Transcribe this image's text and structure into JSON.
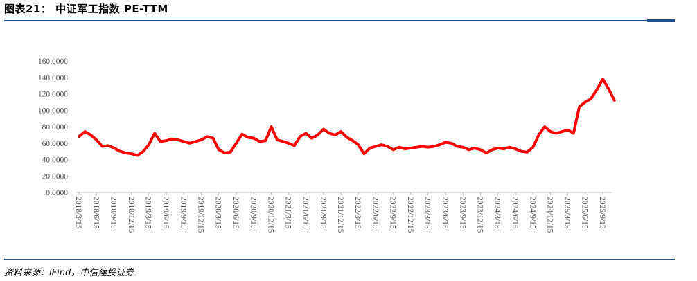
{
  "header": {
    "title": "图表21：   中证军工指数 PE-TTM"
  },
  "footer": {
    "source": "资料来源：iFind，中信建投证券"
  },
  "colors": {
    "line": "#ff0000",
    "rule": "#1f4e8c",
    "axis": "#bfbfbf",
    "tick_text": "#595959"
  },
  "chart_data": {
    "type": "line",
    "title": "",
    "xlabel": "",
    "ylabel": "",
    "ylim": [
      0,
      160
    ],
    "y_ticks": [
      "160.0000",
      "140.0000",
      "120.0000",
      "100.0000",
      "80.0000",
      "60.0000",
      "40.0000",
      "20.0000",
      "0.0000"
    ],
    "x_ticks": [
      "2018/3/15",
      "2018/6/15",
      "2018/9/15",
      "2018/12/15",
      "2019/3/15",
      "2019/6/15",
      "2019/9/15",
      "2019/12/15",
      "2020/3/15",
      "2020/6/15",
      "2020/9/15",
      "2020/12/15",
      "2021/3/15",
      "2021/6/15",
      "2021/9/15",
      "2021/12/15",
      "2022/3/15",
      "2022/6/15",
      "2022/9/15",
      "2022/12/15",
      "2023/3/15",
      "2023/6/15",
      "2023/9/15",
      "2023/12/15",
      "2024/3/15",
      "2024/6/15",
      "2024/9/15",
      "2024/12/15",
      "2025/3/15",
      "2025/6/15",
      "2025/9/15"
    ],
    "grid": false,
    "legend": "none",
    "series": [
      {
        "name": "",
        "x": [
          "2018/3/15",
          "2018/4/15",
          "2018/5/15",
          "2018/6/15",
          "2018/7/15",
          "2018/8/15",
          "2018/9/15",
          "2018/10/15",
          "2018/11/15",
          "2018/12/15",
          "2019/1/15",
          "2019/2/15",
          "2019/3/15",
          "2019/4/15",
          "2019/5/15",
          "2019/6/15",
          "2019/7/15",
          "2019/8/15",
          "2019/9/15",
          "2019/10/15",
          "2019/11/15",
          "2019/12/15",
          "2020/1/15",
          "2020/2/15",
          "2020/3/15",
          "2020/4/15",
          "2020/5/15",
          "2020/6/15",
          "2020/7/15",
          "2020/8/15",
          "2020/9/15",
          "2020/10/15",
          "2020/11/15",
          "2020/12/15",
          "2021/1/15",
          "2021/2/15",
          "2021/3/15",
          "2021/4/15",
          "2021/5/15",
          "2021/6/15",
          "2021/7/15",
          "2021/8/15",
          "2021/9/15",
          "2021/10/15",
          "2021/11/15",
          "2021/12/15",
          "2022/1/15",
          "2022/2/15",
          "2022/3/15",
          "2022/4/15",
          "2022/5/15",
          "2022/6/15",
          "2022/7/15",
          "2022/8/15",
          "2022/9/15",
          "2022/10/15",
          "2022/11/15",
          "2022/12/15",
          "2023/1/15",
          "2023/2/15",
          "2023/3/15",
          "2023/4/15",
          "2023/5/15",
          "2023/6/15",
          "2023/7/15",
          "2023/8/15",
          "2023/9/15",
          "2023/10/15",
          "2023/11/15",
          "2023/12/15",
          "2024/1/15",
          "2024/2/15",
          "2024/3/15",
          "2024/4/15",
          "2024/5/15",
          "2024/6/15",
          "2024/7/15",
          "2024/8/15",
          "2024/9/15",
          "2024/10/15",
          "2024/11/15",
          "2024/12/15",
          "2025/1/15",
          "2025/2/15",
          "2025/3/15",
          "2025/4/15",
          "2025/5/15",
          "2025/6/15",
          "2025/7/15",
          "2025/8/15",
          "2025/9/15",
          "2025/10/15",
          "2025/11/15"
        ],
        "values": [
          68,
          74,
          70,
          64,
          56,
          57,
          54,
          50,
          48,
          47,
          45,
          50,
          58,
          72,
          62,
          63,
          65,
          64,
          62,
          60,
          62,
          64,
          68,
          66,
          52,
          48,
          49,
          60,
          71,
          67,
          66,
          62,
          63,
          80,
          64,
          62,
          60,
          57,
          68,
          72,
          66,
          70,
          77,
          72,
          70,
          74,
          67,
          63,
          58,
          47,
          54,
          56,
          58,
          56,
          52,
          55,
          53,
          54,
          55,
          56,
          55,
          56,
          58,
          61,
          60,
          56,
          55,
          52,
          54,
          52,
          48,
          52,
          54,
          53,
          55,
          53,
          50,
          49,
          55,
          70,
          80,
          74,
          72,
          74,
          76,
          72,
          104,
          110,
          114,
          125,
          138,
          126,
          112
        ]
      }
    ]
  }
}
